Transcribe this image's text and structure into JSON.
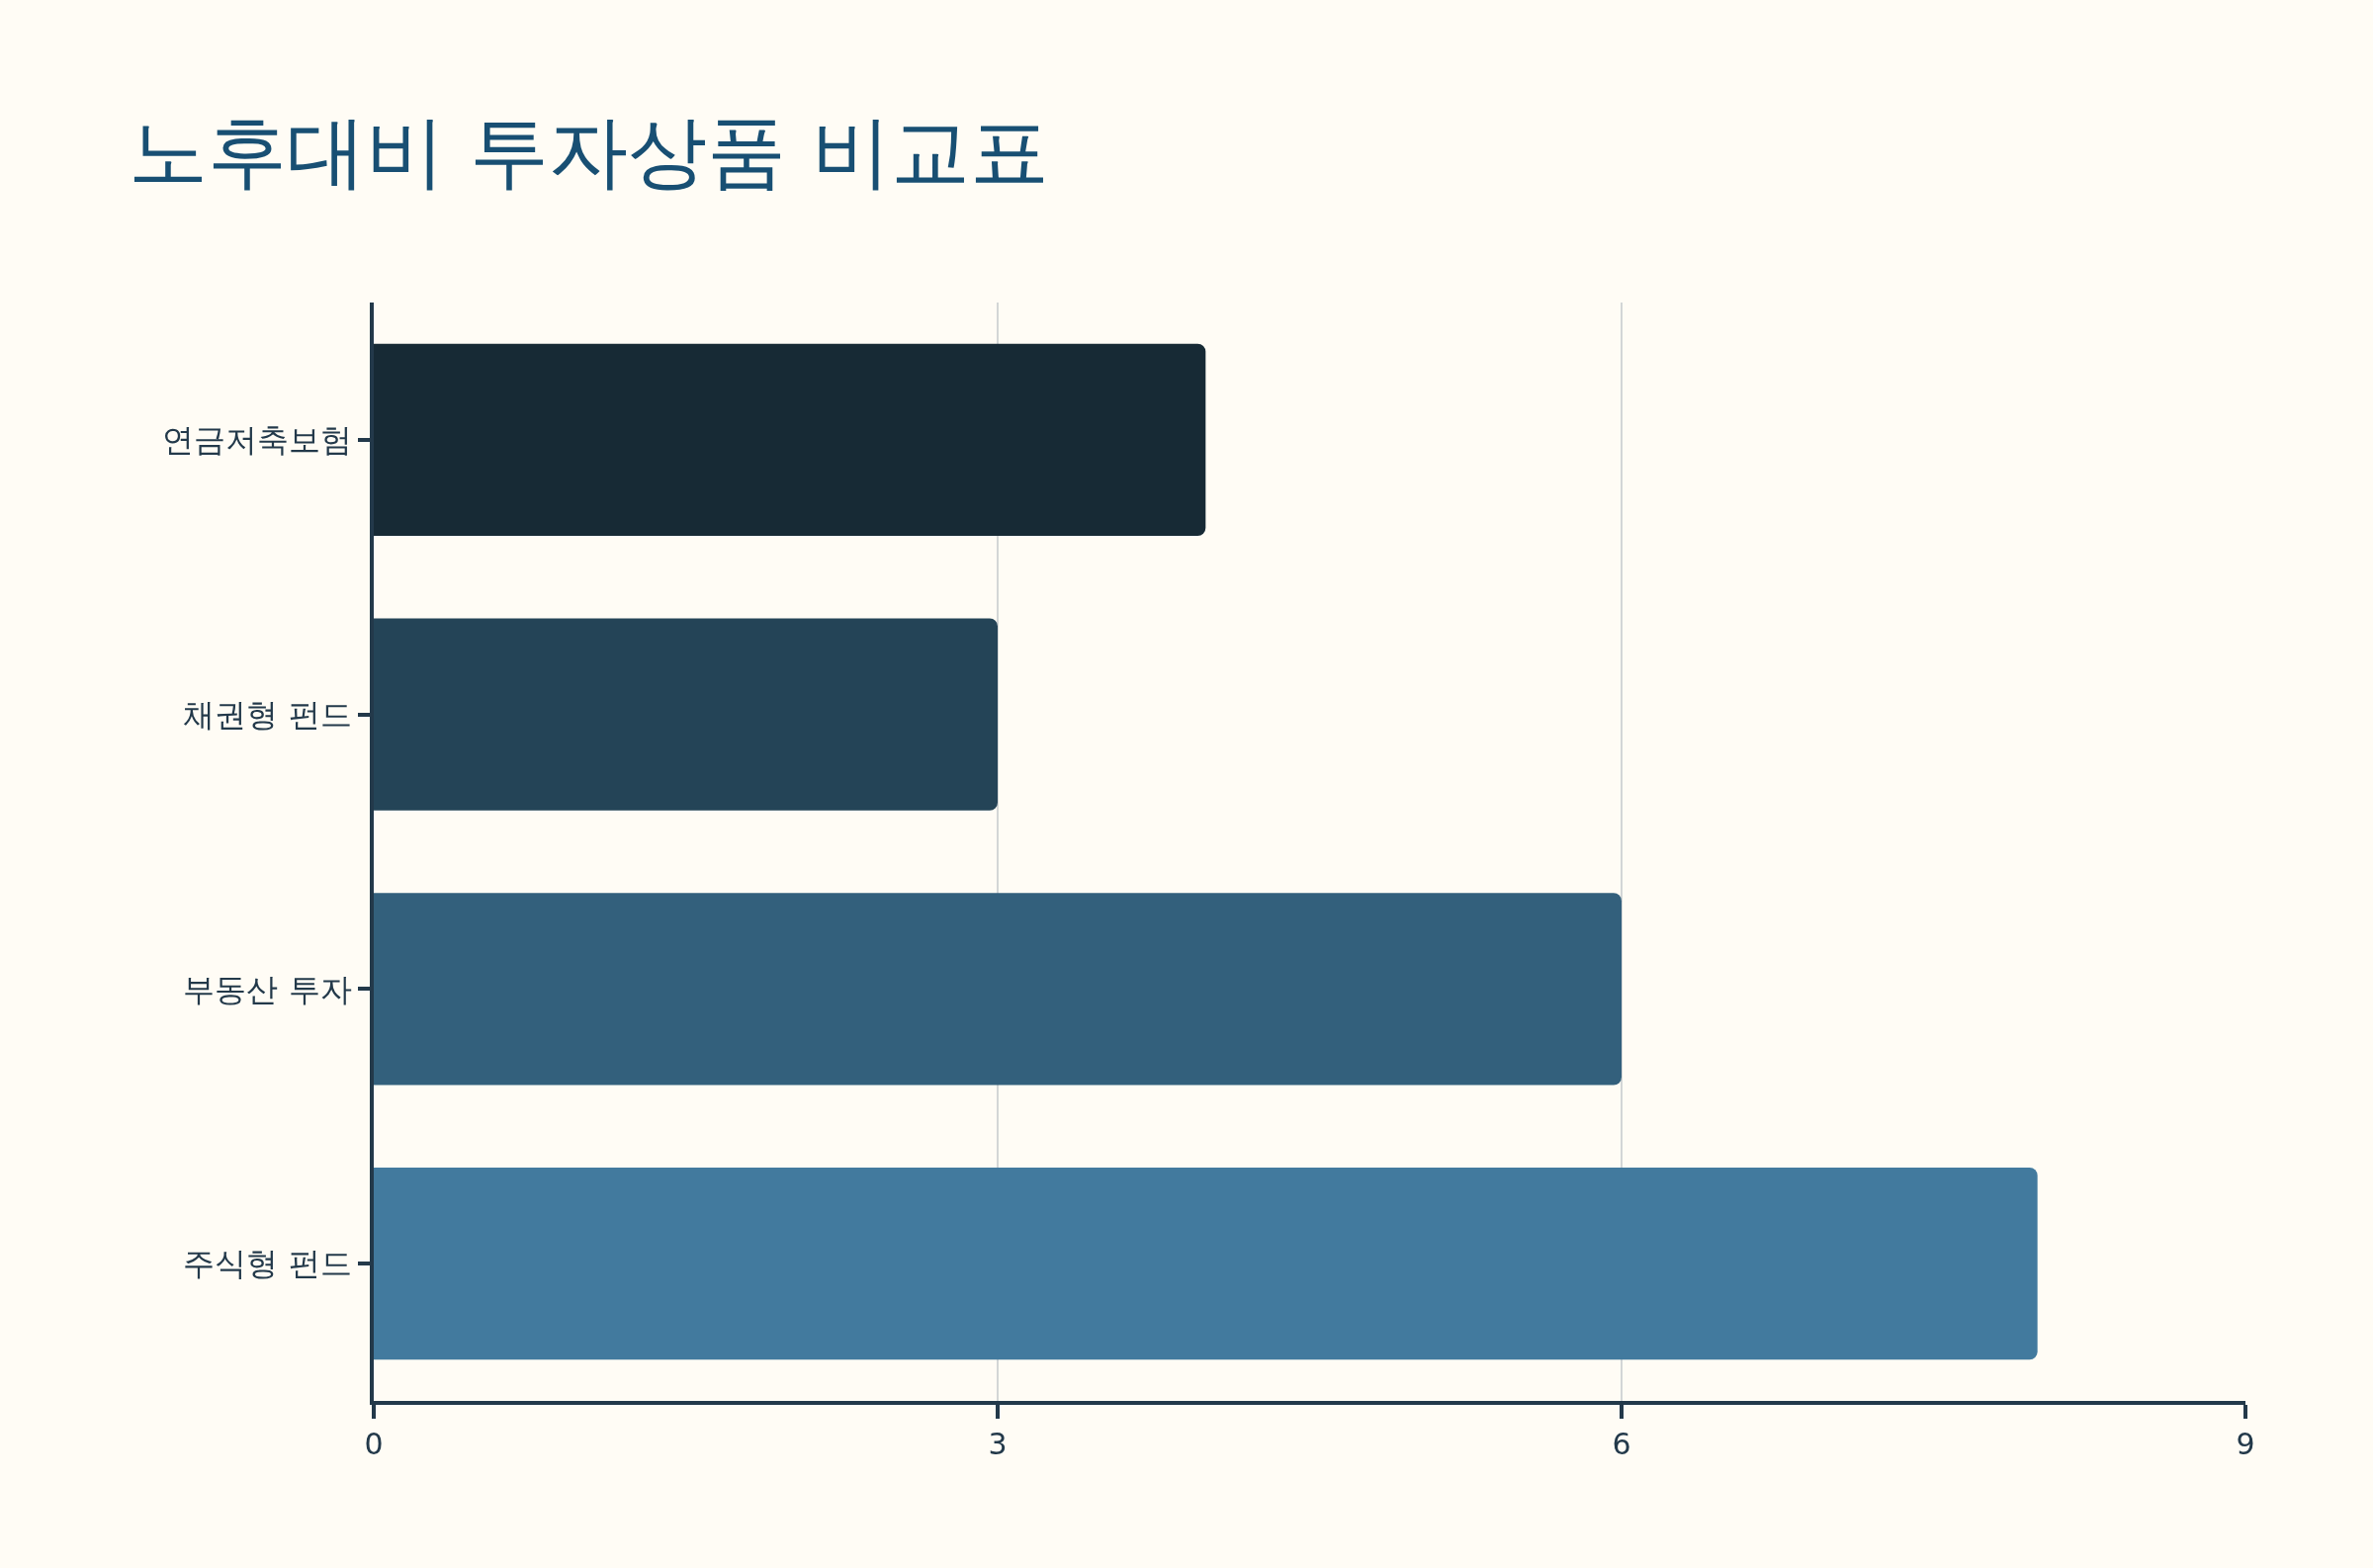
{
  "chart_data": {
    "type": "bar",
    "orientation": "horizontal",
    "title": "노후대비 투자상품 비교표",
    "categories": [
      "연금저축보험",
      "채권형 펀드",
      "부동산 투자",
      "주식형 펀드"
    ],
    "values": [
      4,
      3,
      6,
      8
    ],
    "colors": [
      "#172a35",
      "#244457",
      "#33607c",
      "#427a9e"
    ],
    "xlim": [
      0,
      9
    ],
    "xticks": [
      0,
      3,
      6,
      9
    ],
    "grid": "x"
  }
}
